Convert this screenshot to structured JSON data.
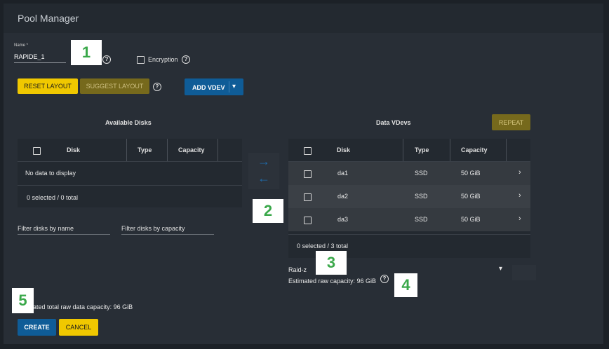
{
  "panel": {
    "title": "Pool Manager"
  },
  "name_field": {
    "label": "Name *",
    "value": "RAPIDE_1"
  },
  "encryption": {
    "label": "Encryption"
  },
  "toolbar": {
    "reset_label": "RESET LAYOUT",
    "suggest_label": "SUGGEST LAYOUT",
    "add_vdev_label": "ADD VDEV",
    "add_vdev_caret": "▾"
  },
  "available": {
    "title": "Available Disks",
    "columns": [
      "Disk",
      "Type",
      "Capacity"
    ],
    "empty_text": "No data to display",
    "footer": "0 selected / 0 total",
    "filter_name_placeholder": "Filter disks by name",
    "filter_capacity_placeholder": "Filter disks by capacity"
  },
  "transfer": {
    "right_arrow": "→",
    "left_arrow": "←"
  },
  "data_vdevs": {
    "title": "Data VDevs",
    "repeat_label": "REPEAT",
    "columns": [
      "Disk",
      "Type",
      "Capacity"
    ],
    "rows": [
      {
        "disk": "da1",
        "type": "SSD",
        "capacity": "50 GiB"
      },
      {
        "disk": "da2",
        "type": "SSD",
        "capacity": "50 GiB"
      },
      {
        "disk": "da3",
        "type": "SSD",
        "capacity": "50 GiB"
      }
    ],
    "footer": "0 selected / 3 total",
    "layout_value": "Raid-z",
    "layout_caret": "▾",
    "estimated_capacity": "Estimated raw capacity: 96 GiB"
  },
  "total_capacity": "ated total raw data capacity: 96 GiB",
  "actions": {
    "create_label": "CREATE",
    "cancel_label": "CANCEL"
  },
  "callouts": [
    "1",
    "2",
    "3",
    "4",
    "5"
  ],
  "icons": {
    "help": "?",
    "chevron_right": "›"
  },
  "colors": {
    "accent_yellow": "#f0c800",
    "accent_blue": "#0f5c97",
    "callout_green": "#3aa84a"
  }
}
